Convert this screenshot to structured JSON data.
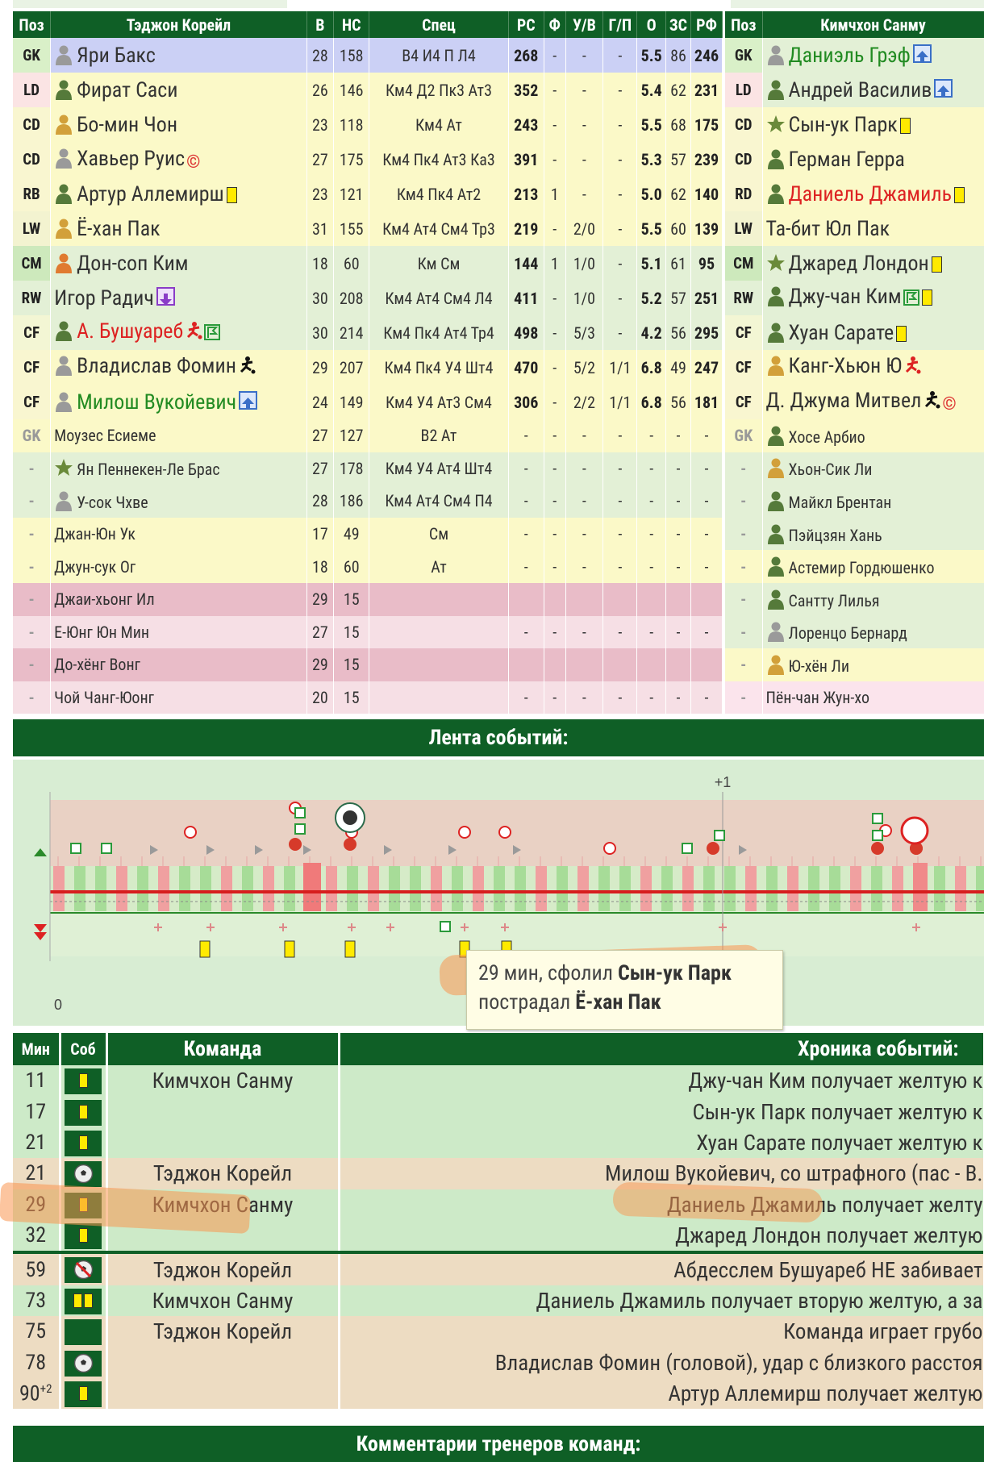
{
  "home": {
    "headers": {
      "pos": "Поз",
      "team": "Тэджон Корейл",
      "age": "В",
      "hs": "НС",
      "spec": "Спец",
      "rs": "РС",
      "f": "Ф",
      "uv": "У/В",
      "gp": "Г/П",
      "o": "О",
      "zs": "ЗС",
      "rf": "РФ"
    },
    "players": [
      {
        "pos": "GK",
        "name": "Яри Бакс",
        "age": "28",
        "hs": "158",
        "spec": "В4 И4 П Л4",
        "rs": "268",
        "f": "-",
        "uv": "-",
        "gp": "-",
        "o": "5.5",
        "zs": "86",
        "rf": "246"
      },
      {
        "pos": "LD",
        "name": "Фират Саси",
        "age": "26",
        "hs": "146",
        "spec": "Км4 Д2 Пк3 Ат3",
        "rs": "352",
        "f": "-",
        "uv": "-",
        "gp": "-",
        "o": "5.4",
        "zs": "62",
        "rf": "231"
      },
      {
        "pos": "CD",
        "name": "Бо-мин Чон",
        "age": "23",
        "hs": "118",
        "spec": "Км4 Ат",
        "rs": "243",
        "f": "-",
        "uv": "-",
        "gp": "-",
        "o": "5.5",
        "zs": "68",
        "rf": "175"
      },
      {
        "pos": "CD",
        "name": "Хавьер Руис",
        "age": "27",
        "hs": "175",
        "spec": "Км4 Пк4 Ат3 Ка3",
        "rs": "391",
        "f": "-",
        "uv": "-",
        "gp": "-",
        "o": "5.3",
        "zs": "57",
        "rf": "239"
      },
      {
        "pos": "RB",
        "name": "Артур Аллемирш",
        "age": "23",
        "hs": "121",
        "spec": "Км4 Пк4 Ат2",
        "rs": "213",
        "f": "1",
        "uv": "-",
        "gp": "-",
        "o": "5.0",
        "zs": "62",
        "rf": "140"
      },
      {
        "pos": "LW",
        "name": "Ё-хан Пак",
        "age": "31",
        "hs": "155",
        "spec": "Км4 Ат4 См4 Тр3",
        "rs": "219",
        "f": "-",
        "uv": "2/0",
        "gp": "-",
        "o": "5.5",
        "zs": "60",
        "rf": "139"
      },
      {
        "pos": "CM",
        "name": "Дон-соп Ким",
        "age": "18",
        "hs": "60",
        "spec": "Км См",
        "rs": "144",
        "f": "1",
        "uv": "1/0",
        "gp": "-",
        "o": "5.1",
        "zs": "61",
        "rf": "95"
      },
      {
        "pos": "RW",
        "name": "Игор Радич",
        "age": "30",
        "hs": "208",
        "spec": "Км4 Ат4 См4 Л4",
        "rs": "411",
        "f": "-",
        "uv": "1/0",
        "gp": "-",
        "o": "5.2",
        "zs": "57",
        "rf": "251"
      },
      {
        "pos": "CF",
        "name": "А. Бушуареб",
        "age": "30",
        "hs": "214",
        "spec": "Км4 Пк4 Ат4 Тр4",
        "rs": "498",
        "f": "-",
        "uv": "5/3",
        "gp": "-",
        "o": "4.2",
        "zs": "56",
        "rf": "295"
      },
      {
        "pos": "CF",
        "name": "Владислав Фомин",
        "age": "29",
        "hs": "207",
        "spec": "Км4 Пк4 У4 Шт4",
        "rs": "470",
        "f": "-",
        "uv": "5/2",
        "gp": "1/1",
        "o": "6.8",
        "zs": "49",
        "rf": "247"
      },
      {
        "pos": "CF",
        "name": "Милош Вукойевич",
        "age": "24",
        "hs": "149",
        "spec": "Км4 У4 Ат3 См4",
        "rs": "306",
        "f": "-",
        "uv": "2/2",
        "gp": "1/1",
        "o": "6.8",
        "zs": "56",
        "rf": "181"
      }
    ],
    "subs": [
      {
        "pos": "GK",
        "name": "Моузес Есиеме",
        "age": "27",
        "hs": "127",
        "spec": "В2 Ат",
        "rs": "-",
        "f": "-",
        "uv": "-",
        "gp": "-",
        "o": "-",
        "zs": "-",
        "rf": "-"
      },
      {
        "pos": "-",
        "name": "Ян Пеннекен-Ле Брас",
        "age": "27",
        "hs": "178",
        "spec": "Км4 У4 Ат4 Шт4",
        "rs": "-",
        "f": "-",
        "uv": "-",
        "gp": "-",
        "o": "-",
        "zs": "-",
        "rf": "-"
      },
      {
        "pos": "-",
        "name": "У-сок Чхве",
        "age": "28",
        "hs": "186",
        "spec": "Км4 Ат4 См4 П4",
        "rs": "-",
        "f": "-",
        "uv": "-",
        "gp": "-",
        "o": "-",
        "zs": "-",
        "rf": "-"
      },
      {
        "pos": "-",
        "name": "Джан-Юн Ук",
        "age": "17",
        "hs": "49",
        "spec": "См",
        "rs": "-",
        "f": "-",
        "uv": "-",
        "gp": "-",
        "o": "-",
        "zs": "-",
        "rf": "-"
      },
      {
        "pos": "-",
        "name": "Джун-сук Ог",
        "age": "18",
        "hs": "60",
        "spec": "Ат",
        "rs": "-",
        "f": "-",
        "uv": "-",
        "gp": "-",
        "o": "-",
        "zs": "-",
        "rf": "-"
      },
      {
        "pos": "-",
        "name": "Джаи-хьонг Ил",
        "age": "29",
        "hs": "15",
        "spec": "",
        "rs": "",
        "f": "",
        "uv": "",
        "gp": "",
        "o": "",
        "zs": "",
        "rf": ""
      },
      {
        "pos": "-",
        "name": "Е-Юнг Юн Мин",
        "age": "27",
        "hs": "15",
        "spec": "",
        "rs": "-",
        "f": "-",
        "uv": "-",
        "gp": "-",
        "o": "-",
        "zs": "-",
        "rf": "-"
      },
      {
        "pos": "-",
        "name": "До-хёнг Вонг",
        "age": "29",
        "hs": "15",
        "spec": "",
        "rs": "",
        "f": "",
        "uv": "",
        "gp": "",
        "o": "",
        "zs": "",
        "rf": ""
      },
      {
        "pos": "-",
        "name": "Чой Чанг-Юонг",
        "age": "20",
        "hs": "15",
        "spec": "",
        "rs": "-",
        "f": "-",
        "uv": "-",
        "gp": "-",
        "o": "-",
        "zs": "-",
        "rf": "-"
      }
    ]
  },
  "away": {
    "headers": {
      "pos": "Поз",
      "team": "Кимчхон Санму"
    },
    "players": [
      {
        "pos": "GK",
        "name": "Даниэль Грэф"
      },
      {
        "pos": "LD",
        "name": "Андрей Василив"
      },
      {
        "pos": "CD",
        "name": "Сын-ук Парк"
      },
      {
        "pos": "CD",
        "name": "Герман Герра"
      },
      {
        "pos": "RD",
        "name": "Даниель Джамиль"
      },
      {
        "pos": "LW",
        "name": "Та-бит Юл Пак"
      },
      {
        "pos": "CM",
        "name": "Джаред Лондон"
      },
      {
        "pos": "RW",
        "name": "Джу-чан Ким"
      },
      {
        "pos": "CF",
        "name": "Хуан Сарате"
      },
      {
        "pos": "CF",
        "name": "Канг-Хьюн Ю"
      },
      {
        "pos": "CF",
        "name": "Д. Джума Митвел"
      }
    ],
    "subs": [
      {
        "pos": "GK",
        "name": "Хосе Арбио"
      },
      {
        "pos": "-",
        "name": "Хьон-Сик Ли"
      },
      {
        "pos": "-",
        "name": "Майкл Брентан"
      },
      {
        "pos": "-",
        "name": "Пэйцзян Хань"
      },
      {
        "pos": "-",
        "name": "Астемир Гордюшенко"
      },
      {
        "pos": "-",
        "name": "Сантту Лилья"
      },
      {
        "pos": "-",
        "name": "Лоренцо Бернард"
      },
      {
        "pos": "-",
        "name": "Ю-хён Ли"
      },
      {
        "pos": "-",
        "name": "Пён-чан Жун-хо"
      }
    ]
  },
  "feed": {
    "title": "Лента событий:",
    "plus": "+1",
    "zero": "0"
  },
  "tooltip": {
    "line1_prefix": "29 мин, сфолил ",
    "line1_name": "Сын-ук Парк",
    "line2_prefix": "пострадал ",
    "line2_name": "Ё-хан Пак"
  },
  "chronicle": {
    "headers": {
      "min": "Мин",
      "ev": "Соб",
      "team": "Команда",
      "txt": "Хроника событий:"
    },
    "rows": [
      {
        "min": "11",
        "ev": "yellow",
        "team": "Кимчхон Санму",
        "txt": "Джу-чан Ким получает желтую к",
        "side": "away"
      },
      {
        "min": "17",
        "ev": "yellow",
        "team": "",
        "txt": "Сын-ук Парк получает желтую к",
        "side": "away"
      },
      {
        "min": "21",
        "ev": "yellow",
        "team": "",
        "txt": "Хуан Сарате получает желтую к",
        "side": "away"
      },
      {
        "min": "21",
        "ev": "goal",
        "team": "Тэджон Корейл",
        "txt": "Милош Вукойевич, со штрафного (пас - В.",
        "side": "home"
      },
      {
        "min": "29",
        "ev": "yellow",
        "team": "Кимчхон Санму",
        "txt": "Даниель Джамиль получает желту",
        "side": "away"
      },
      {
        "min": "32",
        "ev": "yellow",
        "team": "",
        "txt": "Джаред Лондон получает желтую",
        "side": "away"
      },
      {
        "min": "59",
        "ev": "miss",
        "team": "Тэджон Корейл",
        "txt": "Абдесслем Бушуареб НЕ забивает",
        "side": "home"
      },
      {
        "min": "73",
        "ev": "yellow2",
        "team": "Кимчхон Санму",
        "txt": "Даниель Джамиль получает вторую желтую, а за",
        "side": "away"
      },
      {
        "min": "75",
        "ev": "none",
        "team": "Тэджон Корейл",
        "txt": "Команда играет грубо",
        "side": "home"
      },
      {
        "min": "78",
        "ev": "goal",
        "team": "",
        "txt": "Владислав Фомин (головой), удар с близкого расстоя",
        "side": "home"
      },
      {
        "min": "90+2",
        "ev": "yellow",
        "team": "",
        "txt": "Артур Аллемирш получает желтую",
        "side": "home"
      }
    ]
  },
  "comments": {
    "title": "Комментарии тренеров команд:"
  },
  "colors": {
    "dark_green": "#0f5f26",
    "gk_blue": "#cbd0f5",
    "yellow_row": "#fbf9c8",
    "green_row": "#e3f0d6",
    "pink_row": "#e9bcc8"
  }
}
